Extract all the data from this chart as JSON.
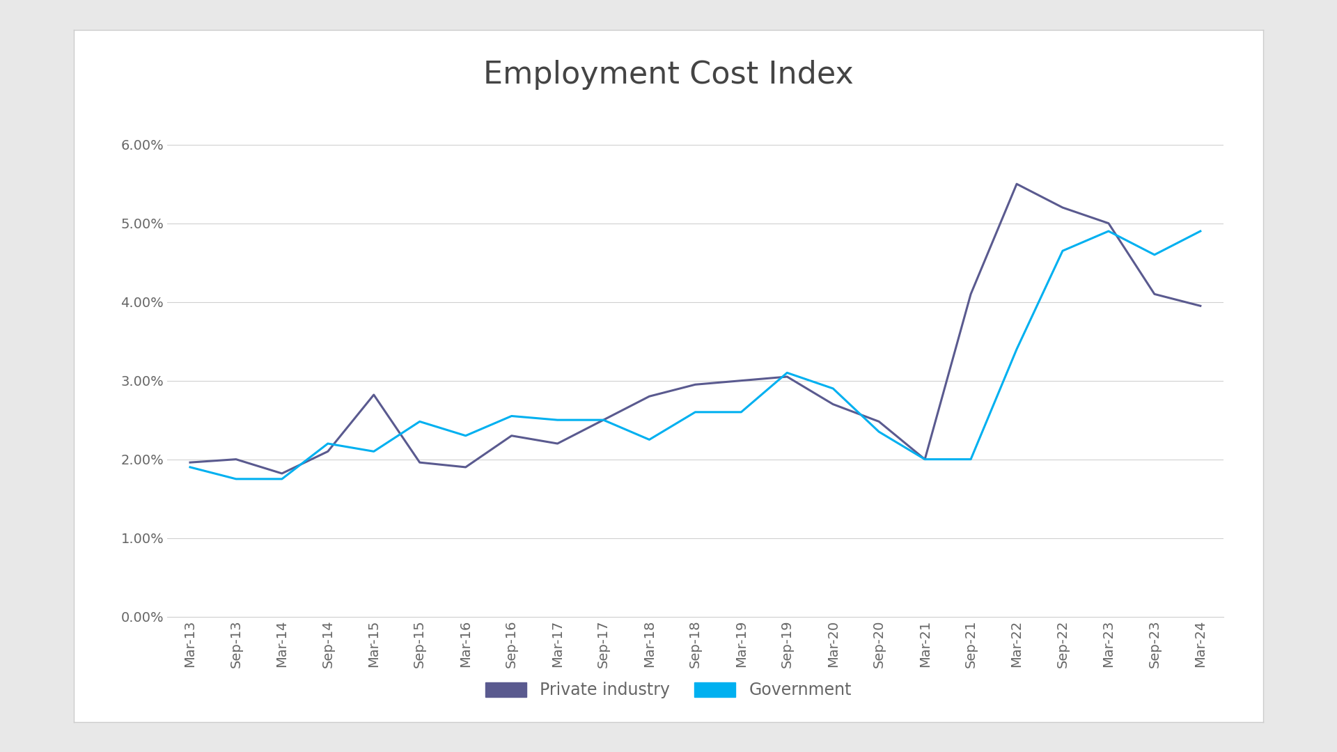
{
  "title": "Employment Cost Index",
  "title_fontsize": 32,
  "outer_bg_color": "#e8e8e8",
  "box_bg_color": "#ffffff",
  "plot_bg_color": "#ffffff",
  "x_labels": [
    "Mar-13",
    "Sep-13",
    "Mar-14",
    "Sep-14",
    "Mar-15",
    "Sep-15",
    "Mar-16",
    "Sep-16",
    "Mar-17",
    "Sep-17",
    "Mar-18",
    "Sep-18",
    "Mar-19",
    "Sep-19",
    "Mar-20",
    "Sep-20",
    "Mar-21",
    "Sep-21",
    "Mar-22",
    "Sep-22",
    "Mar-23",
    "Sep-23",
    "Mar-24"
  ],
  "private_industry": [
    0.0196,
    0.02,
    0.0182,
    0.021,
    0.0282,
    0.0196,
    0.019,
    0.023,
    0.022,
    0.025,
    0.028,
    0.0295,
    0.03,
    0.0305,
    0.027,
    0.0248,
    0.02,
    0.041,
    0.055,
    0.052,
    0.05,
    0.041,
    0.0395
  ],
  "government": [
    0.019,
    0.0175,
    0.0175,
    0.022,
    0.021,
    0.0248,
    0.023,
    0.0255,
    0.025,
    0.025,
    0.0225,
    0.026,
    0.026,
    0.031,
    0.029,
    0.0235,
    0.02,
    0.02,
    0.034,
    0.0465,
    0.049,
    0.046,
    0.049
  ],
  "private_color": "#5a5a8f",
  "government_color": "#00b0f0",
  "line_width": 2.2,
  "legend_labels": [
    "Private industry",
    "Government"
  ],
  "ylim": [
    0.0,
    0.065
  ],
  "yticks": [
    0.0,
    0.01,
    0.02,
    0.03,
    0.04,
    0.05,
    0.06
  ],
  "grid_color": "#d0d0d0",
  "tick_label_color": "#666666",
  "tick_fontsize": 14,
  "legend_fontsize": 17
}
